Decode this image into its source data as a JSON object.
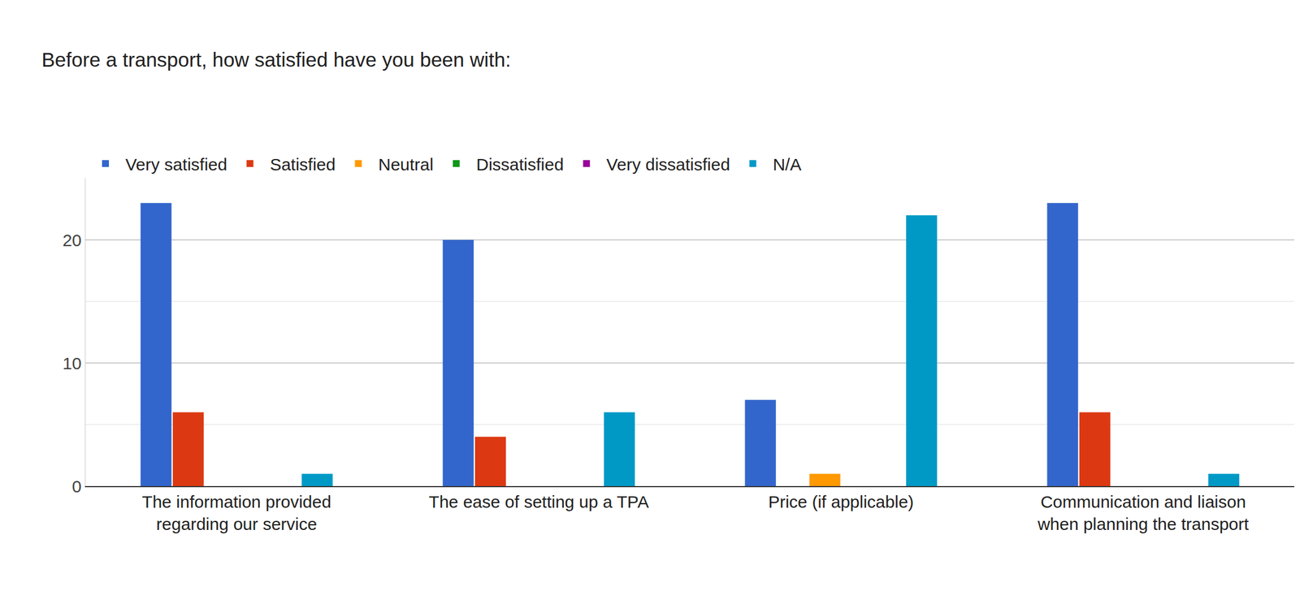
{
  "chart_data": {
    "type": "bar",
    "title": "Before a transport, how satisfied have you been with:",
    "categories": [
      "The information provided regarding our service",
      "The ease of setting up a TPA",
      "Price (if applicable)",
      "Communication and liaison when planning the transport"
    ],
    "series": [
      {
        "name": "Very satisfied",
        "color": "#3366cc",
        "values": [
          23,
          20,
          7,
          23
        ]
      },
      {
        "name": "Satisfied",
        "color": "#dc3912",
        "values": [
          6,
          4,
          0,
          6
        ]
      },
      {
        "name": "Neutral",
        "color": "#ff9900",
        "values": [
          0,
          0,
          1,
          0
        ]
      },
      {
        "name": "Dissatisfied",
        "color": "#109618",
        "values": [
          0,
          0,
          0,
          0
        ]
      },
      {
        "name": "Very dissatisfied",
        "color": "#990099",
        "values": [
          0,
          0,
          0,
          0
        ]
      },
      {
        "name": "N/A",
        "color": "#0099c6",
        "values": [
          1,
          6,
          22,
          1
        ]
      }
    ],
    "ylim": [
      0,
      25
    ],
    "yticks": [
      0,
      10,
      20
    ],
    "grid": true,
    "legend": "top"
  }
}
